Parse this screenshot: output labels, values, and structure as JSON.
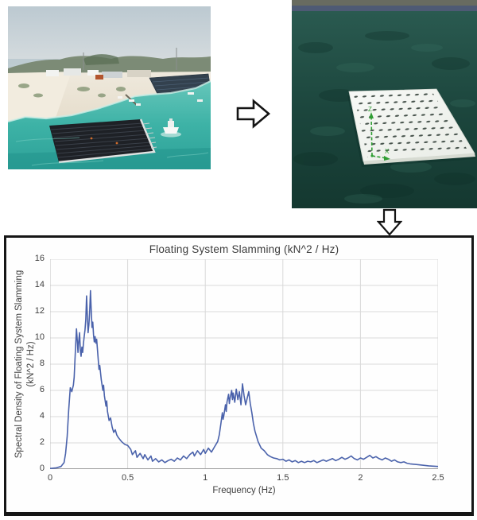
{
  "figure": {
    "photo_left": {
      "alt": "Aerial photograph of a floating solar panel array moored in turquoise water beside a white sand beach with buildings, trees and a ground-mounted solar farm"
    },
    "render_right": {
      "alt": "Numerical simulation render of a white perforated floating platform on dark green sea with green Z and X coordinate axes",
      "axis_z_label": "Z",
      "axis_x_label": "X"
    },
    "flow": {
      "arrow_right": "block-arrow-right",
      "arrow_down": "block-arrow-down"
    }
  },
  "chart_data": {
    "type": "line",
    "title": "Floating System Slamming (kN^2 / Hz)",
    "xlabel": "Frequency (Hz)",
    "ylabel_line1": "Spectral Density of Floating System Slamming",
    "ylabel_line2": "(kN^2 / Hz)",
    "xlim": [
      0,
      2.5
    ],
    "ylim": [
      0,
      16
    ],
    "x_ticks": [
      "0",
      "0.5",
      "1",
      "1.5",
      "2",
      "2.5"
    ],
    "y_ticks": [
      "0",
      "2",
      "4",
      "6",
      "8",
      "10",
      "12",
      "14",
      "16"
    ],
    "grid": true,
    "legend": false,
    "line_color": "#4a62ab",
    "grid_color": "#d9d9d9",
    "axis_color": "#9a9a9a",
    "series": [
      {
        "name": "Floating System Slamming",
        "points": [
          [
            0.0,
            0.05
          ],
          [
            0.04,
            0.1
          ],
          [
            0.07,
            0.2
          ],
          [
            0.09,
            0.5
          ],
          [
            0.1,
            1.2
          ],
          [
            0.11,
            2.5
          ],
          [
            0.12,
            4.5
          ],
          [
            0.13,
            6.2
          ],
          [
            0.14,
            5.9
          ],
          [
            0.15,
            6.4
          ],
          [
            0.155,
            7.0
          ],
          [
            0.16,
            8.2
          ],
          [
            0.165,
            9.5
          ],
          [
            0.17,
            10.7
          ],
          [
            0.175,
            9.8
          ],
          [
            0.18,
            8.9
          ],
          [
            0.185,
            9.8
          ],
          [
            0.19,
            10.4
          ],
          [
            0.195,
            9.0
          ],
          [
            0.2,
            8.6
          ],
          [
            0.205,
            9.3
          ],
          [
            0.21,
            8.9
          ],
          [
            0.215,
            9.6
          ],
          [
            0.22,
            10.1
          ],
          [
            0.225,
            10.6
          ],
          [
            0.23,
            11.4
          ],
          [
            0.235,
            13.2
          ],
          [
            0.24,
            11.8
          ],
          [
            0.245,
            10.4
          ],
          [
            0.25,
            11.0
          ],
          [
            0.255,
            12.0
          ],
          [
            0.26,
            13.6
          ],
          [
            0.265,
            12.2
          ],
          [
            0.27,
            10.8
          ],
          [
            0.275,
            11.2
          ],
          [
            0.28,
            10.2
          ],
          [
            0.285,
            9.7
          ],
          [
            0.29,
            10.1
          ],
          [
            0.295,
            9.6
          ],
          [
            0.3,
            9.9
          ],
          [
            0.31,
            8.4
          ],
          [
            0.315,
            7.6
          ],
          [
            0.32,
            7.9
          ],
          [
            0.33,
            6.8
          ],
          [
            0.34,
            6.0
          ],
          [
            0.345,
            6.4
          ],
          [
            0.35,
            5.6
          ],
          [
            0.36,
            4.8
          ],
          [
            0.365,
            5.2
          ],
          [
            0.37,
            4.4
          ],
          [
            0.38,
            3.7
          ],
          [
            0.39,
            3.9
          ],
          [
            0.4,
            3.2
          ],
          [
            0.41,
            2.8
          ],
          [
            0.42,
            3.0
          ],
          [
            0.43,
            2.6
          ],
          [
            0.44,
            2.4
          ],
          [
            0.46,
            2.1
          ],
          [
            0.48,
            1.9
          ],
          [
            0.5,
            1.8
          ],
          [
            0.52,
            1.5
          ],
          [
            0.53,
            1.1
          ],
          [
            0.55,
            1.4
          ],
          [
            0.56,
            0.9
          ],
          [
            0.58,
            1.2
          ],
          [
            0.6,
            0.8
          ],
          [
            0.61,
            1.1
          ],
          [
            0.63,
            0.7
          ],
          [
            0.65,
            1.0
          ],
          [
            0.66,
            0.6
          ],
          [
            0.68,
            0.8
          ],
          [
            0.7,
            0.55
          ],
          [
            0.72,
            0.7
          ],
          [
            0.74,
            0.5
          ],
          [
            0.76,
            0.65
          ],
          [
            0.78,
            0.75
          ],
          [
            0.8,
            0.6
          ],
          [
            0.82,
            0.85
          ],
          [
            0.84,
            0.7
          ],
          [
            0.86,
            1.0
          ],
          [
            0.88,
            0.8
          ],
          [
            0.9,
            1.1
          ],
          [
            0.92,
            1.3
          ],
          [
            0.93,
            1.0
          ],
          [
            0.95,
            1.4
          ],
          [
            0.97,
            1.1
          ],
          [
            0.99,
            1.5
          ],
          [
            1.0,
            1.2
          ],
          [
            1.02,
            1.6
          ],
          [
            1.04,
            1.3
          ],
          [
            1.06,
            1.7
          ],
          [
            1.08,
            2.1
          ],
          [
            1.09,
            2.6
          ],
          [
            1.1,
            3.4
          ],
          [
            1.11,
            4.3
          ],
          [
            1.115,
            3.8
          ],
          [
            1.12,
            4.1
          ],
          [
            1.13,
            4.9
          ],
          [
            1.135,
            4.4
          ],
          [
            1.14,
            5.1
          ],
          [
            1.15,
            5.7
          ],
          [
            1.155,
            5.0
          ],
          [
            1.16,
            5.4
          ],
          [
            1.17,
            6.0
          ],
          [
            1.175,
            5.3
          ],
          [
            1.18,
            5.8
          ],
          [
            1.19,
            5.1
          ],
          [
            1.2,
            6.1
          ],
          [
            1.21,
            5.3
          ],
          [
            1.22,
            5.9
          ],
          [
            1.23,
            4.9
          ],
          [
            1.24,
            6.5
          ],
          [
            1.25,
            5.6
          ],
          [
            1.26,
            4.9
          ],
          [
            1.27,
            5.4
          ],
          [
            1.28,
            5.9
          ],
          [
            1.29,
            5.0
          ],
          [
            1.3,
            4.3
          ],
          [
            1.31,
            3.5
          ],
          [
            1.32,
            2.9
          ],
          [
            1.34,
            2.1
          ],
          [
            1.36,
            1.6
          ],
          [
            1.38,
            1.4
          ],
          [
            1.4,
            1.1
          ],
          [
            1.42,
            0.95
          ],
          [
            1.44,
            0.85
          ],
          [
            1.46,
            0.8
          ],
          [
            1.48,
            0.7
          ],
          [
            1.5,
            0.75
          ],
          [
            1.52,
            0.6
          ],
          [
            1.54,
            0.7
          ],
          [
            1.56,
            0.55
          ],
          [
            1.58,
            0.65
          ],
          [
            1.6,
            0.5
          ],
          [
            1.62,
            0.6
          ],
          [
            1.64,
            0.5
          ],
          [
            1.66,
            0.6
          ],
          [
            1.68,
            0.55
          ],
          [
            1.7,
            0.65
          ],
          [
            1.72,
            0.5
          ],
          [
            1.74,
            0.6
          ],
          [
            1.76,
            0.7
          ],
          [
            1.78,
            0.6
          ],
          [
            1.8,
            0.7
          ],
          [
            1.82,
            0.8
          ],
          [
            1.84,
            0.65
          ],
          [
            1.86,
            0.75
          ],
          [
            1.88,
            0.9
          ],
          [
            1.9,
            0.75
          ],
          [
            1.92,
            0.85
          ],
          [
            1.94,
            1.0
          ],
          [
            1.96,
            0.8
          ],
          [
            1.98,
            0.7
          ],
          [
            2.0,
            0.85
          ],
          [
            2.02,
            0.75
          ],
          [
            2.04,
            0.9
          ],
          [
            2.06,
            1.05
          ],
          [
            2.08,
            0.85
          ],
          [
            2.1,
            0.95
          ],
          [
            2.12,
            0.8
          ],
          [
            2.14,
            0.7
          ],
          [
            2.16,
            0.85
          ],
          [
            2.18,
            0.75
          ],
          [
            2.2,
            0.6
          ],
          [
            2.22,
            0.7
          ],
          [
            2.24,
            0.55
          ],
          [
            2.26,
            0.5
          ],
          [
            2.28,
            0.55
          ],
          [
            2.3,
            0.45
          ],
          [
            2.32,
            0.4
          ],
          [
            2.36,
            0.35
          ],
          [
            2.4,
            0.3
          ],
          [
            2.44,
            0.25
          ],
          [
            2.48,
            0.22
          ],
          [
            2.5,
            0.2
          ]
        ]
      }
    ]
  }
}
